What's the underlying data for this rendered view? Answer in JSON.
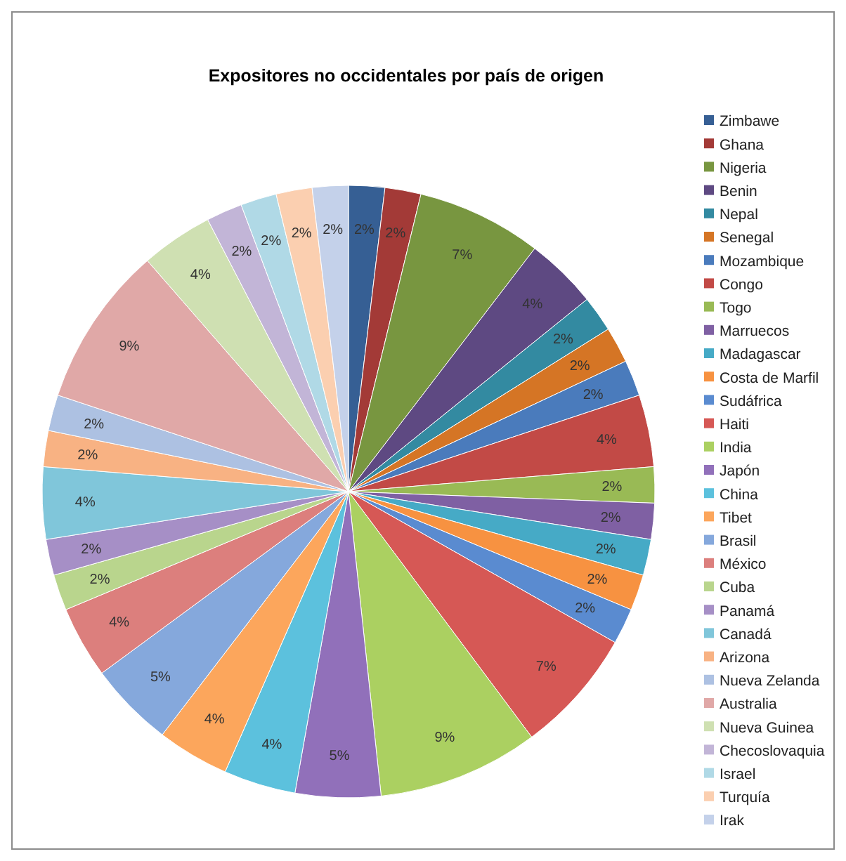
{
  "chart_data": {
    "type": "pie",
    "title": "Expositores no occidentales por país de origen",
    "categories": [
      "Zimbawe",
      "Ghana",
      "Nigeria",
      "Benin",
      "Nepal",
      "Senegal",
      "Mozambique",
      "Congo",
      "Togo",
      "Marruecos",
      "Madagascar",
      "Costa de Marfil",
      "Sudáfrica",
      "Haiti",
      "India",
      "Japón",
      "China",
      "Tibet",
      "Brasil",
      "México",
      "Cuba",
      "Panamá",
      "Canadá",
      "Arizona",
      "Nueva Zelanda",
      "Australia",
      "Nueva Guinea",
      "Checoslovaquia",
      "Israel",
      "Turquía",
      "Irak"
    ],
    "values": [
      1.9,
      1.9,
      6.6,
      3.8,
      1.9,
      1.9,
      1.9,
      3.8,
      1.9,
      1.9,
      1.9,
      1.9,
      1.9,
      6.6,
      8.5,
      4.5,
      3.8,
      3.8,
      4.5,
      3.8,
      1.9,
      1.9,
      3.8,
      1.9,
      1.9,
      8.5,
      3.8,
      1.9,
      1.9,
      1.9,
      1.9
    ],
    "value_labels": [
      "2%",
      "2%",
      "7%",
      "4%",
      "2%",
      "2%",
      "2%",
      "4%",
      "2%",
      "2%",
      "2%",
      "2%",
      "2%",
      "7%",
      "9%",
      "5%",
      "4%",
      "4%",
      "5%",
      "4%",
      "2%",
      "2%",
      "4%",
      "2%",
      "2%",
      "9%",
      "4%",
      "2%",
      "2%",
      "2%",
      "2%"
    ],
    "colors": [
      "#365f94",
      "#a33a37",
      "#789640",
      "#5e4982",
      "#338aa1",
      "#d57525",
      "#4a7bbc",
      "#c24a46",
      "#99ba55",
      "#7f60a3",
      "#46aac6",
      "#f79241",
      "#5a8bd0",
      "#d65855",
      "#abd061",
      "#9170ba",
      "#5cc1dd",
      "#fca65c",
      "#85a8dc",
      "#dc7f7d",
      "#b9d58d",
      "#a68fc6",
      "#80c6da",
      "#f8b283",
      "#adc1e2",
      "#e0a8a7",
      "#cfe0b2",
      "#c2b5d7",
      "#b0d9e6",
      "#fbcfb0",
      "#c4d1ea"
    ],
    "legend": "right"
  }
}
